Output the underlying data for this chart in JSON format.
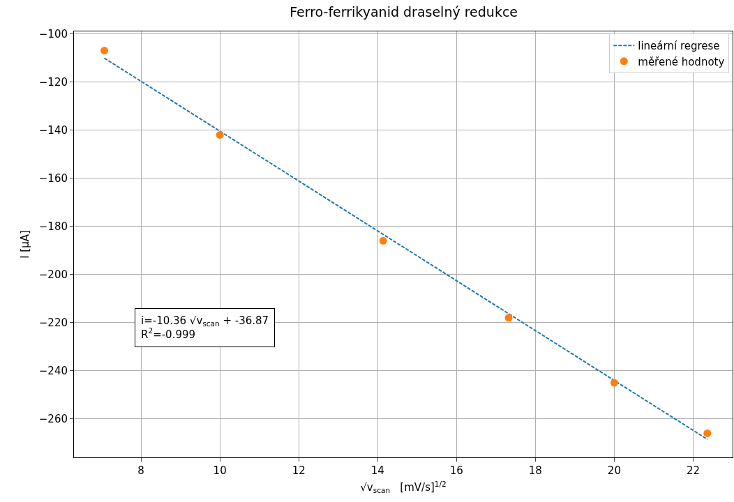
{
  "chart_data": {
    "type": "scatter",
    "title": "Ferro-ferrikyanid draselný redukce",
    "xlabel": "√v$_{scan}$   [mV/s]$^{1/2}$",
    "ylabel": "I [µA]",
    "series": [
      {
        "name": "lineární regrese",
        "type": "line",
        "color": "#1f77b4",
        "line_style": "dashed",
        "marker": "none",
        "x": [
          7.07,
          22.36
        ],
        "values": [
          -110.1,
          -268.5
        ]
      },
      {
        "name": "měřené hodnoty",
        "color": "#ff7f0e",
        "marker": "circle",
        "x": [
          7.07,
          10,
          14.14,
          17.32,
          20,
          22.36
        ],
        "values": [
          -107,
          -142,
          -186,
          -218,
          -245,
          -266
        ]
      }
    ],
    "xlim": [
      6.3,
      23.0
    ],
    "xticks": [
      8,
      10,
      12,
      14,
      16,
      18,
      20,
      22
    ],
    "ylim": [
      -276,
      -99
    ],
    "yticks": [
      -100,
      -120,
      -140,
      -160,
      -180,
      -200,
      -220,
      -240,
      -260
    ],
    "grid": true,
    "legend": "top right",
    "annotations": [
      "i=-10.36 √v$_{scan}$ + -36.87\nR$^{2}$=-0.999"
    ]
  }
}
